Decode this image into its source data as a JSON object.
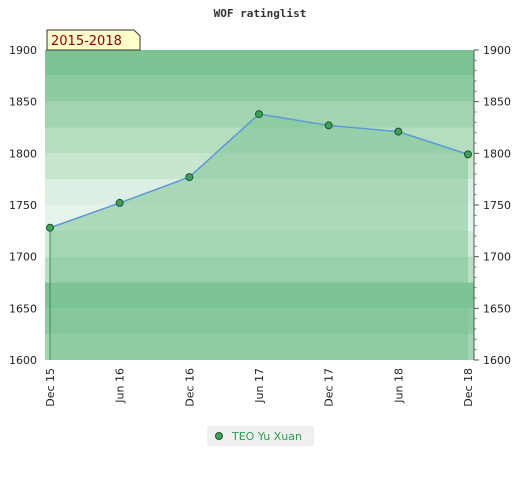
{
  "chart_data": {
    "type": "area",
    "title": "WOF ratinglist",
    "period_label": "2015-2018",
    "categories": [
      "Dec 15",
      "Jun 16",
      "Dec 16",
      "Jun 17",
      "Dec 17",
      "Jun 18",
      "Dec 18"
    ],
    "series": [
      {
        "name": "TEO Yu Xuan",
        "values": [
          1728,
          1752,
          1777,
          1838,
          1827,
          1821,
          1799
        ]
      }
    ],
    "ylim": [
      1600,
      1900
    ],
    "yticks": [
      1600,
      1650,
      1700,
      1750,
      1800,
      1850,
      1900
    ],
    "grid": true,
    "legend_position": "bottom-center",
    "colors": {
      "area": "#7dc494",
      "line": "#5b9bd5",
      "marker_fill": "#3fa05a",
      "marker_stroke": "#1f5530",
      "badge_fill": "#ffffcc",
      "badge_text": "#8b0000",
      "legend_text": "#2e9e4e"
    }
  }
}
